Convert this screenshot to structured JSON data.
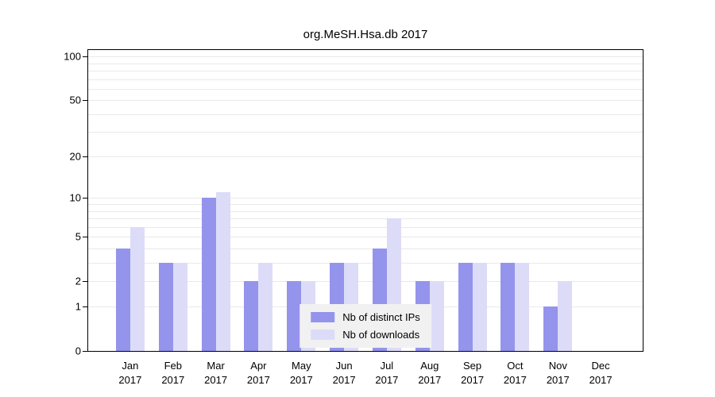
{
  "chart_data": {
    "type": "bar",
    "title": "org.MeSH.Hsa.db 2017",
    "categories": [
      "Jan 2017",
      "Feb 2017",
      "Mar 2017",
      "Apr 2017",
      "May 2017",
      "Jun 2017",
      "Jul 2017",
      "Aug 2017",
      "Sep 2017",
      "Oct 2017",
      "Nov 2017",
      "Dec 2017"
    ],
    "series": [
      {
        "name": "Nb of distinct IPs",
        "color": "#9494ec",
        "values": [
          4,
          3,
          10,
          2,
          2,
          3,
          4,
          2,
          3,
          3,
          1,
          0
        ]
      },
      {
        "name": "Nb of downloads",
        "color": "#dcdcf8",
        "values": [
          6,
          3,
          11,
          3,
          2,
          3,
          7,
          2,
          3,
          3,
          2,
          0
        ]
      }
    ],
    "yticks": [
      0,
      1,
      2,
      5,
      10,
      20,
      50,
      100
    ],
    "grid_values": [
      1,
      2,
      3,
      4,
      5,
      6,
      7,
      8,
      9,
      10,
      20,
      30,
      40,
      50,
      60,
      70,
      80,
      90,
      100
    ],
    "ylim": [
      0,
      100
    ],
    "xlabel": "",
    "ylabel": "",
    "scale": "log1p",
    "grid": "on",
    "legend_position": "bottom-center-inside",
    "colors": {
      "grid": "#e9e9e9",
      "axis": "#000000",
      "legend_background": "#f1f1f1",
      "background": "#ffffff"
    }
  }
}
